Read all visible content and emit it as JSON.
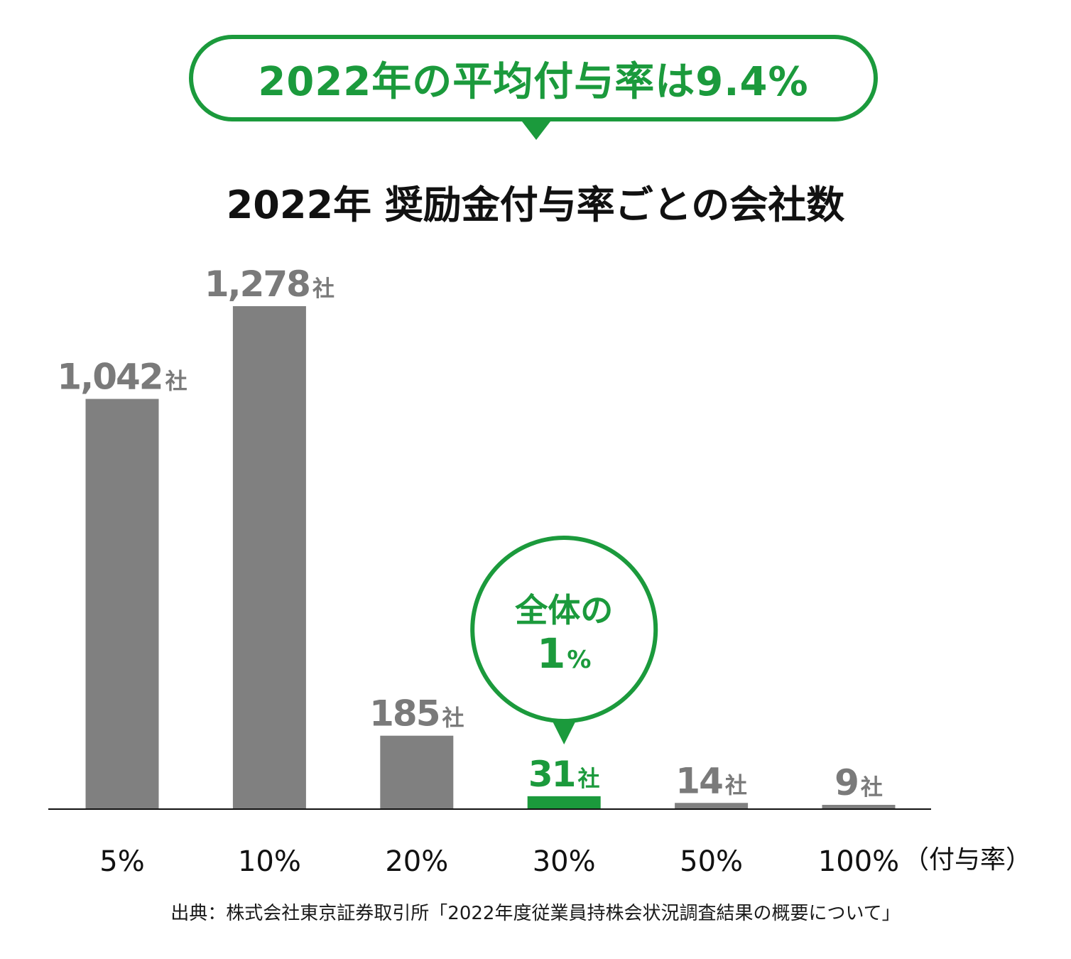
{
  "headline": "2022年の平均付与率は9.4%",
  "source": "出典：株式会社東京証券取引所「2022年度従業員持株会状況調査結果の概要について」",
  "callout": {
    "line1": "全体の",
    "number": "1",
    "unit": "%"
  },
  "colors": {
    "accent": "#1b9a3c",
    "bar": "#808080",
    "label": "#7a7a7a",
    "axis": "#111111"
  },
  "chart_data": {
    "type": "bar",
    "title": "2022年 奨励金付与率ごとの会社数",
    "xlabel": "（付与率）",
    "ylabel": "",
    "unit": "社",
    "categories": [
      "5%",
      "10%",
      "20%",
      "30%",
      "50%",
      "100%"
    ],
    "values": [
      1042,
      1278,
      185,
      31,
      14,
      9
    ],
    "value_labels": [
      "1,042",
      "1,278",
      "185",
      "31",
      "14",
      "9"
    ],
    "highlight": "30%",
    "ylim": [
      0,
      1278
    ],
    "grid": false,
    "legend": "none"
  }
}
